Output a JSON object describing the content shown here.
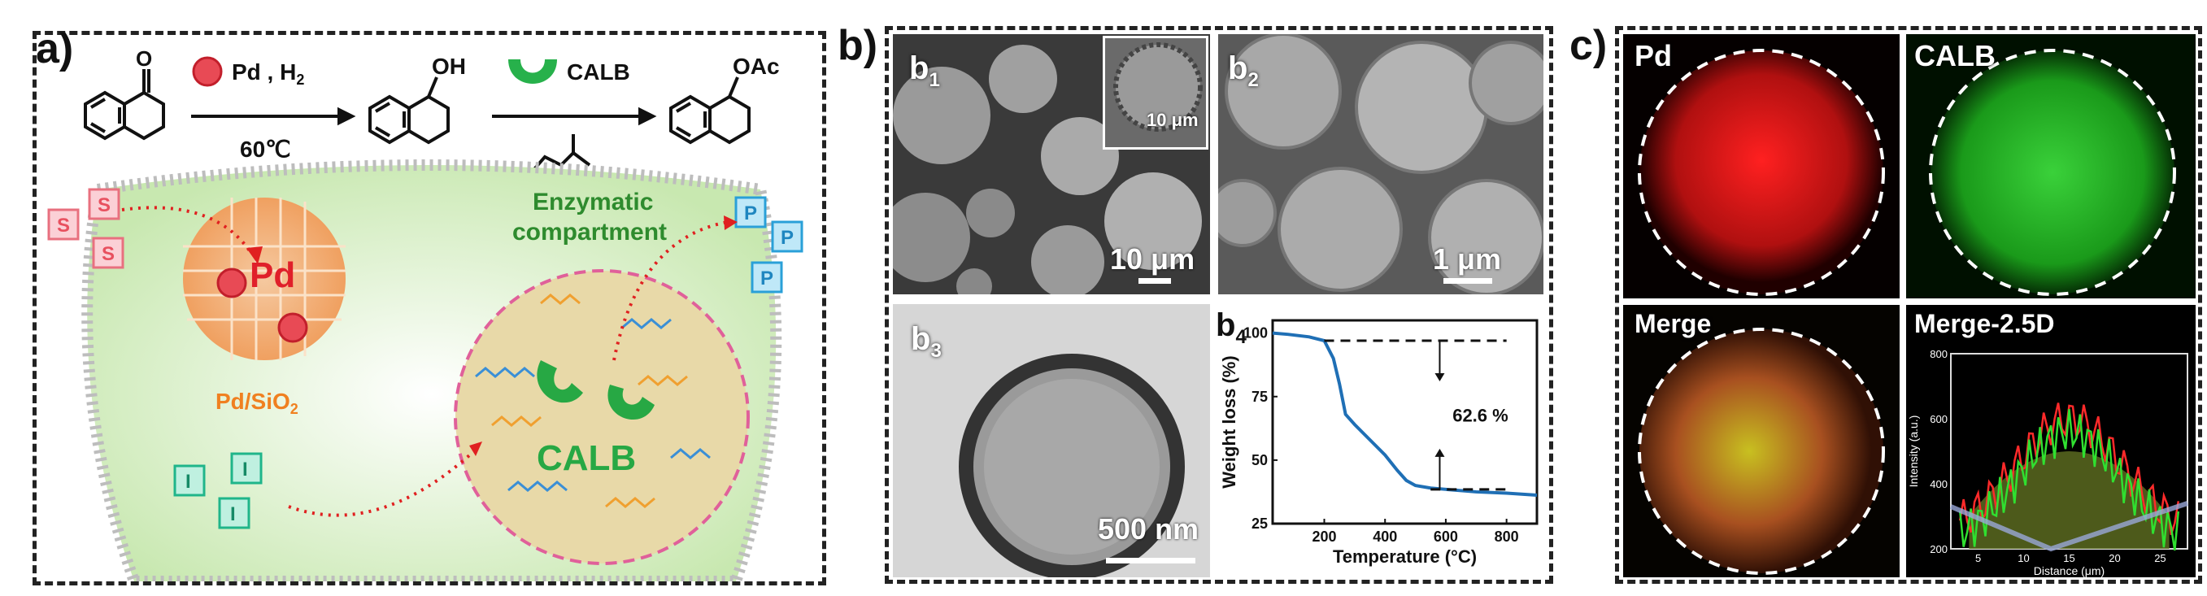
{
  "panel_a": {
    "label": "a)",
    "reaction": {
      "catalyst1": "Pd , H",
      "catalyst1_sub": "2",
      "temperature": "60℃",
      "enzyme": "CALB",
      "product_group_oh": "OH",
      "product_group_oac": "OAc",
      "ketone_o": "O"
    },
    "diagram": {
      "substrate": "S",
      "intermediate": "I",
      "product": "P",
      "pd_label": "Pd",
      "pd_sio2_label": "Pd/SiO",
      "pd_sio2_sub": "2",
      "compartment_line1": "Enzymatic",
      "compartment_line2": "compartment",
      "calb_label": "CALB"
    }
  },
  "panel_b": {
    "label": "b)",
    "b1": {
      "label": "b",
      "sub": "1",
      "scale": "10 μm",
      "inset_scale": "10 μm"
    },
    "b2": {
      "label": "b",
      "sub": "2",
      "scale": "1 μm"
    },
    "b3": {
      "label": "b",
      "sub": "3",
      "scale": "500 nm"
    },
    "b4": {
      "label": "b",
      "sub": "4"
    }
  },
  "panel_c": {
    "label": "c)",
    "tiles": {
      "pd": "Pd",
      "calb": "CALB",
      "merge": "Merge",
      "merge25d": "Merge-2.5D"
    }
  },
  "colors": {
    "pd_red": "#e8202a",
    "calb_green": "#2fbf3a",
    "tga_line": "#1f6fb5",
    "sio2_orange": "#f0a060"
  },
  "chart_data": [
    {
      "type": "line",
      "title": "",
      "xlabel": "Temperature (°C)",
      "ylabel": "Weight loss (%)",
      "xlim": [
        30,
        900
      ],
      "ylim": [
        25,
        105
      ],
      "xticks": [
        "200",
        "400",
        "600",
        "800"
      ],
      "yticks": [
        "100",
        "75",
        "50",
        "25"
      ],
      "annotation": "62.6 %",
      "series": [
        {
          "x": [
            30,
            80,
            150,
            200,
            230,
            250,
            270,
            300,
            350,
            400,
            440,
            470,
            500,
            550,
            600,
            700,
            800,
            900
          ],
          "y": [
            100,
            99.5,
            98.5,
            97,
            90,
            80,
            68,
            64,
            58,
            52,
            46,
            42,
            40,
            39,
            38.5,
            37.5,
            37,
            36.2
          ]
        }
      ]
    },
    {
      "type": "line",
      "title": "",
      "xlabel": "Distance (μm)",
      "ylabel": "Intensity (a.u.)",
      "xlim": [
        2,
        28
      ],
      "ylim": [
        200,
        800
      ],
      "xticks": [
        "5",
        "10",
        "15",
        "20",
        "25"
      ],
      "yticks": [
        "800",
        "600",
        "400",
        "200"
      ]
    }
  ]
}
